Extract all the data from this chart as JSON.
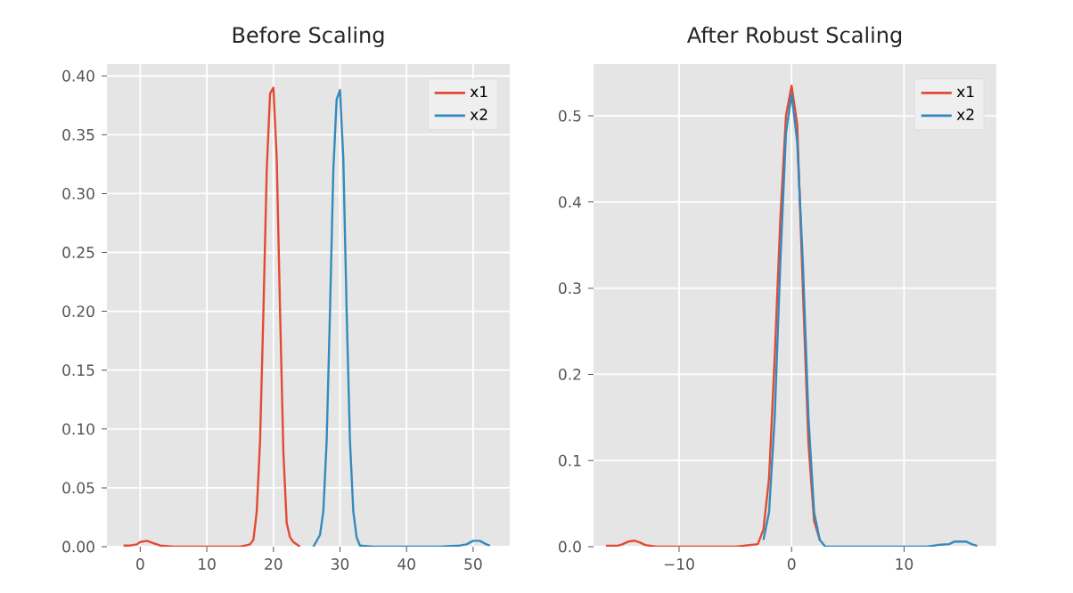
{
  "chart_data": [
    {
      "type": "line",
      "title": "Before Scaling",
      "xlim": [
        -5,
        55.5
      ],
      "ylim": [
        0,
        0.41
      ],
      "xticks": [
        0,
        10,
        20,
        30,
        40,
        50
      ],
      "yticks": [
        {
          "value": 0,
          "label": "0.00"
        },
        0.05,
        {
          "value": 0.1,
          "label": "0.10"
        },
        0.15,
        {
          "value": 0.2,
          "label": "0.20"
        },
        0.25,
        {
          "value": 0.3,
          "label": "0.30"
        },
        0.35,
        {
          "value": 0.4,
          "label": "0.40"
        }
      ],
      "grid": true,
      "legend": "top right",
      "series": [
        {
          "name": "x1",
          "color": "#e24a33",
          "x": [
            -2.5,
            -1.5,
            -0.5,
            0,
            1,
            2,
            3,
            5,
            10,
            15,
            16.5,
            17,
            17.5,
            18,
            18.5,
            19,
            19.5,
            20,
            20.5,
            21,
            21.5,
            22,
            22.5,
            23,
            24
          ],
          "values": [
            0.001,
            0.001,
            0.002,
            0.004,
            0.005,
            0.003,
            0.001,
            0,
            0,
            0,
            0.002,
            0.006,
            0.03,
            0.09,
            0.2,
            0.32,
            0.385,
            0.39,
            0.33,
            0.2,
            0.08,
            0.02,
            0.008,
            0.004,
            0
          ]
        },
        {
          "name": "x2",
          "color": "#348abd",
          "x": [
            26,
            27,
            27.5,
            28,
            28.5,
            29,
            29.5,
            30,
            30.5,
            31,
            31.5,
            32,
            32.5,
            33,
            35,
            40,
            45,
            48,
            49,
            50,
            51,
            52,
            52.5
          ],
          "values": [
            0,
            0.01,
            0.03,
            0.09,
            0.2,
            0.32,
            0.38,
            0.388,
            0.33,
            0.2,
            0.09,
            0.03,
            0.008,
            0.001,
            0,
            0,
            0,
            0.001,
            0.002,
            0.005,
            0.005,
            0.002,
            0.001
          ]
        }
      ]
    },
    {
      "type": "line",
      "title": "After Robust Scaling",
      "xlim": [
        -17.6,
        18.2
      ],
      "ylim": [
        0,
        0.56
      ],
      "xticks": [
        {
          "value": -10,
          "label": "−10"
        },
        0,
        10
      ],
      "yticks": [
        {
          "value": 0,
          "label": "0.0"
        },
        0.1,
        0.2,
        0.3,
        0.4,
        0.5
      ],
      "grid": true,
      "legend": "top right",
      "series": [
        {
          "name": "x1",
          "color": "#e24a33",
          "x": [
            -16.5,
            -15.5,
            -15,
            -14.5,
            -14,
            -13.5,
            -13,
            -12,
            -10,
            -5,
            -3,
            -2.5,
            -2,
            -1.5,
            -1,
            -0.5,
            0,
            0.5,
            1,
            1.5,
            2,
            2.5
          ],
          "values": [
            0.001,
            0.001,
            0.003,
            0.006,
            0.007,
            0.005,
            0.002,
            0,
            0,
            0,
            0.003,
            0.02,
            0.08,
            0.22,
            0.38,
            0.5,
            0.535,
            0.49,
            0.3,
            0.12,
            0.03,
            0.008
          ]
        },
        {
          "name": "x2",
          "color": "#348abd",
          "x": [
            -2.5,
            -2,
            -1.5,
            -1,
            -0.5,
            0,
            0.5,
            1,
            1.5,
            2,
            2.5,
            3,
            5,
            10,
            12,
            13,
            14,
            14.5,
            15,
            15.5,
            16,
            16.5
          ],
          "values": [
            0.008,
            0.04,
            0.15,
            0.33,
            0.48,
            0.525,
            0.47,
            0.33,
            0.15,
            0.04,
            0.008,
            0,
            0,
            0,
            0,
            0.002,
            0.003,
            0.006,
            0.006,
            0.006,
            0.003,
            0.001
          ]
        }
      ]
    }
  ]
}
